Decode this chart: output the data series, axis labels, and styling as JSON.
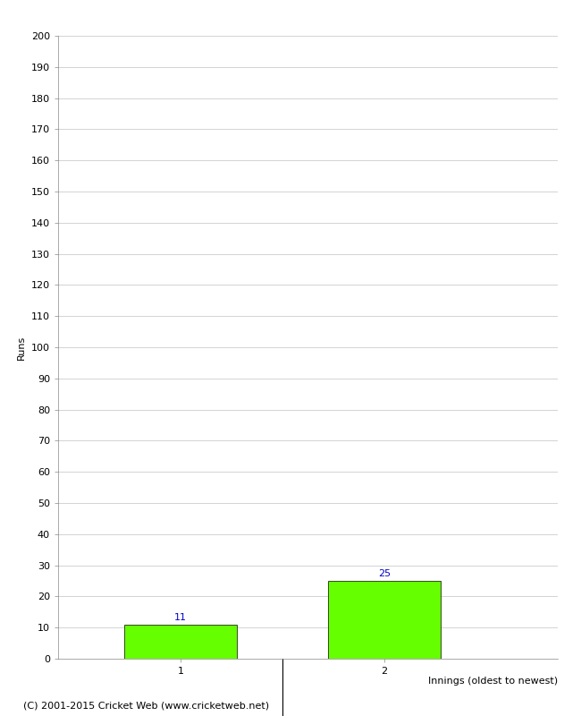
{
  "categories": [
    "1",
    "2"
  ],
  "values": [
    11,
    25
  ],
  "bar_color": "#66ff00",
  "bar_edge_color": "#000000",
  "bar_edge_width": 0.5,
  "bar_width": 0.55,
  "ylabel": "Runs",
  "xlabel": "Innings (oldest to newest)",
  "ylim": [
    0,
    200
  ],
  "ytick_step": 10,
  "value_label_color": "#0000cc",
  "value_label_fontsize": 8,
  "tick_label_fontsize": 8,
  "axis_label_fontsize": 8,
  "footer_text": "(C) 2001-2015 Cricket Web (www.cricketweb.net)",
  "footer_fontsize": 8,
  "background_color": "#ffffff",
  "grid_color": "#cccccc",
  "grid_linewidth": 0.6
}
